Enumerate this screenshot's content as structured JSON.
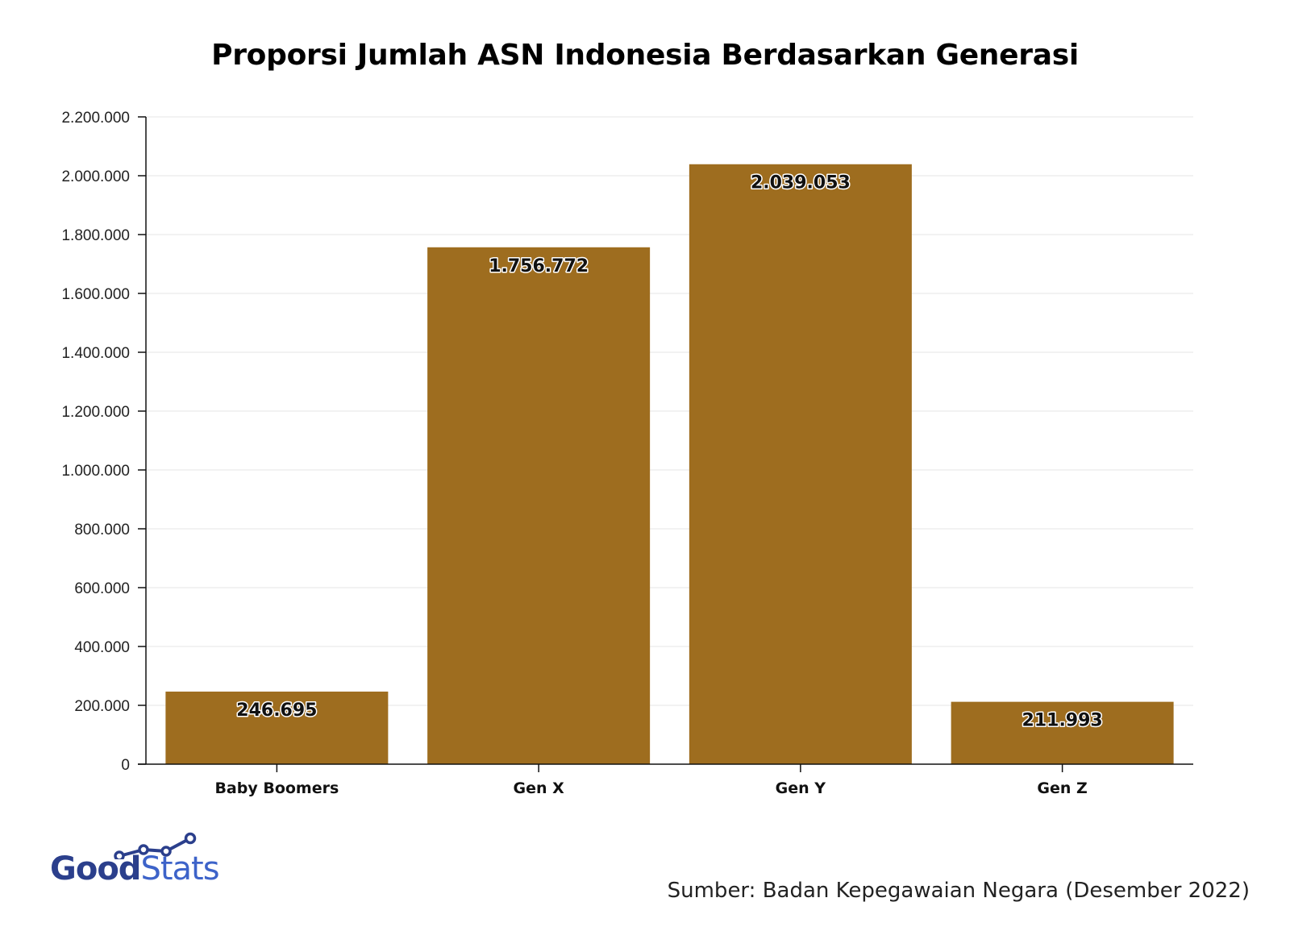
{
  "chart_data": {
    "type": "bar",
    "title": "Proporsi Jumlah ASN Indonesia Berdasarkan Generasi",
    "categories": [
      "Baby Boomers",
      "Gen X",
      "Gen Y",
      "Gen Z"
    ],
    "values": [
      246695,
      1756772,
      2039053,
      211993
    ],
    "value_labels": [
      "246.695",
      "1.756.772",
      "2.039.053",
      "211.993"
    ],
    "xlabel": "",
    "ylabel": "",
    "ylim": [
      0,
      2200000
    ],
    "y_ticks": [
      0,
      200000,
      400000,
      600000,
      800000,
      1000000,
      1200000,
      1400000,
      1600000,
      1800000,
      2000000,
      2200000
    ],
    "y_tick_labels": [
      "0",
      "200.000",
      "400.000",
      "600.000",
      "800.000",
      "1.000.000",
      "1.200.000",
      "1.400.000",
      "1.600.000",
      "1.800.000",
      "2.000.000",
      "2.200.000"
    ],
    "bar_color": "#9e6d1f",
    "grid": true,
    "legend": "none"
  },
  "branding": {
    "logo_part1": "Good",
    "logo_part2": "Stats",
    "logo_color_primary": "#2b3f8c",
    "logo_color_secondary": "#3d63c9"
  },
  "source": "Sumber: Badan Kepegawaian Negara (Desember 2022)"
}
